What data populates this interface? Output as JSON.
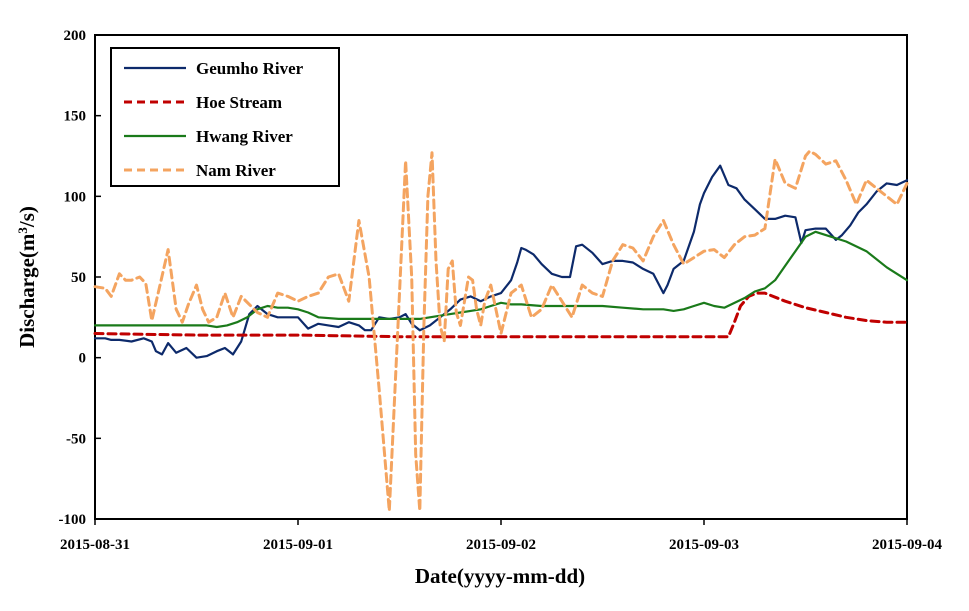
{
  "chart_data": {
    "type": "line",
    "title": "",
    "xlabel": "Date(yyyy-mm-dd)",
    "ylabel_parts": [
      "Discharge(m",
      "3",
      "/s)"
    ],
    "ylim": [
      -100,
      200
    ],
    "y_ticks": [
      -100,
      -50,
      0,
      50,
      100,
      150,
      200
    ],
    "xlim": [
      0,
      4
    ],
    "x_tick_labels": [
      "2015-08-31",
      "2015-09-01",
      "2015-09-02",
      "2015-09-03",
      "2015-09-04"
    ],
    "x_unit_note": "x values are days after 2015-08-31 00:00",
    "grid": false,
    "legend_position": "top-left",
    "series": [
      {
        "name": "Geumho River",
        "color": "#0d2a6b",
        "style": "solid",
        "x": [
          0,
          0.05,
          0.08,
          0.12,
          0.18,
          0.24,
          0.28,
          0.3,
          0.33,
          0.36,
          0.4,
          0.45,
          0.5,
          0.55,
          0.6,
          0.64,
          0.68,
          0.72,
          0.76,
          0.8,
          0.85,
          0.9,
          0.95,
          1.0,
          1.05,
          1.1,
          1.15,
          1.2,
          1.25,
          1.3,
          1.33,
          1.36,
          1.4,
          1.45,
          1.5,
          1.53,
          1.56,
          1.6,
          1.65,
          1.7,
          1.75,
          1.8,
          1.85,
          1.9,
          1.95,
          2.0,
          2.05,
          2.08,
          2.1,
          2.12,
          2.16,
          2.2,
          2.25,
          2.3,
          2.34,
          2.37,
          2.4,
          2.45,
          2.5,
          2.55,
          2.6,
          2.65,
          2.7,
          2.75,
          2.8,
          2.82,
          2.85,
          2.9,
          2.95,
          2.98,
          3.0,
          3.04,
          3.08,
          3.12,
          3.16,
          3.2,
          3.25,
          3.3,
          3.35,
          3.4,
          3.45,
          3.48,
          3.5,
          3.55,
          3.6,
          3.65,
          3.68,
          3.72,
          3.76,
          3.8,
          3.85,
          3.9,
          3.95,
          4.0
        ],
        "y": [
          12,
          12,
          11,
          11,
          10,
          12,
          10,
          4,
          2,
          9,
          3,
          6,
          0,
          1,
          4,
          6,
          2,
          10,
          27,
          32,
          27,
          25,
          25,
          25,
          18,
          21,
          20,
          19,
          22,
          20,
          17,
          17,
          25,
          24,
          25,
          27,
          21,
          17,
          20,
          25,
          30,
          36,
          38,
          35,
          38,
          40,
          48,
          59,
          68,
          67,
          64,
          58,
          52,
          50,
          50,
          69,
          70,
          65,
          58,
          60,
          60,
          59,
          55,
          52,
          40,
          45,
          55,
          60,
          78,
          95,
          102,
          112,
          119,
          107,
          105,
          98,
          92,
          86,
          86,
          88,
          87,
          71,
          79,
          80,
          80,
          73,
          76,
          82,
          90,
          95,
          103,
          108,
          107,
          110
        ]
      },
      {
        "name": "Hoe Stream",
        "color": "#c00000",
        "style": "dashed",
        "x": [
          0,
          0.5,
          1.0,
          1.5,
          2.0,
          2.5,
          3.0,
          3.08,
          3.12,
          3.15,
          3.18,
          3.22,
          3.26,
          3.3,
          3.4,
          3.5,
          3.6,
          3.7,
          3.8,
          3.9,
          4.0
        ],
        "y": [
          15,
          14,
          14,
          13,
          13,
          13,
          13,
          13,
          13,
          22,
          32,
          38,
          40,
          40,
          35,
          31,
          28,
          25,
          23,
          22,
          22
        ]
      },
      {
        "name": "Hwang River",
        "color": "#1a7a1a",
        "style": "solid",
        "x": [
          0,
          0.2,
          0.4,
          0.5,
          0.55,
          0.6,
          0.65,
          0.7,
          0.75,
          0.8,
          0.85,
          0.9,
          0.95,
          1.0,
          1.05,
          1.1,
          1.2,
          1.3,
          1.4,
          1.5,
          1.6,
          1.65,
          1.7,
          1.75,
          1.8,
          1.85,
          1.9,
          1.95,
          2.0,
          2.05,
          2.1,
          2.2,
          2.3,
          2.4,
          2.5,
          2.6,
          2.7,
          2.8,
          2.85,
          2.9,
          2.95,
          3.0,
          3.05,
          3.1,
          3.2,
          3.25,
          3.3,
          3.35,
          3.4,
          3.45,
          3.5,
          3.55,
          3.6,
          3.7,
          3.8,
          3.9,
          4.0
        ],
        "y": [
          20,
          20,
          20,
          20,
          20,
          19,
          20,
          22,
          25,
          30,
          32,
          31,
          31,
          30,
          28,
          25,
          24,
          24,
          24,
          24,
          24,
          25,
          26,
          27,
          28,
          29,
          30,
          32,
          34,
          33,
          33,
          32,
          32,
          32,
          32,
          31,
          30,
          30,
          29,
          30,
          32,
          34,
          32,
          31,
          37,
          41,
          43,
          48,
          57,
          66,
          75,
          78,
          76,
          72,
          66,
          56,
          48
        ]
      },
      {
        "name": "Nam River",
        "color": "#f4a460",
        "style": "dashed",
        "x": [
          0,
          0.05,
          0.08,
          0.12,
          0.15,
          0.18,
          0.22,
          0.25,
          0.28,
          0.32,
          0.36,
          0.4,
          0.43,
          0.46,
          0.5,
          0.53,
          0.56,
          0.6,
          0.64,
          0.68,
          0.72,
          0.76,
          0.8,
          0.85,
          0.9,
          0.95,
          1.0,
          1.05,
          1.1,
          1.15,
          1.2,
          1.25,
          1.3,
          1.35,
          1.4,
          1.45,
          1.5,
          1.53,
          1.56,
          1.58,
          1.6,
          1.62,
          1.64,
          1.66,
          1.68,
          1.7,
          1.72,
          1.74,
          1.76,
          1.78,
          1.8,
          1.82,
          1.84,
          1.86,
          1.88,
          1.9,
          1.92,
          1.95,
          2.0,
          2.05,
          2.1,
          2.15,
          2.2,
          2.25,
          2.3,
          2.35,
          2.4,
          2.45,
          2.5,
          2.55,
          2.6,
          2.65,
          2.7,
          2.75,
          2.8,
          2.85,
          2.9,
          2.95,
          3.0,
          3.05,
          3.1,
          3.15,
          3.2,
          3.25,
          3.3,
          3.35,
          3.4,
          3.45,
          3.5,
          3.52,
          3.55,
          3.6,
          3.65,
          3.7,
          3.75,
          3.8,
          3.85,
          3.9,
          3.95,
          4.0
        ],
        "y": [
          44,
          43,
          38,
          52,
          48,
          48,
          50,
          46,
          23,
          45,
          67,
          30,
          22,
          33,
          45,
          30,
          22,
          25,
          40,
          25,
          38,
          33,
          28,
          25,
          40,
          38,
          35,
          38,
          40,
          50,
          52,
          35,
          85,
          50,
          -20,
          -95,
          40,
          122,
          50,
          -60,
          -95,
          20,
          100,
          127,
          60,
          20,
          10,
          55,
          60,
          28,
          20,
          35,
          50,
          48,
          30,
          20,
          35,
          45,
          15,
          40,
          45,
          25,
          30,
          45,
          35,
          25,
          45,
          40,
          38,
          60,
          70,
          68,
          60,
          75,
          85,
          70,
          58,
          62,
          66,
          67,
          62,
          70,
          75,
          76,
          80,
          123,
          108,
          105,
          125,
          128,
          126,
          120,
          122,
          110,
          95,
          110,
          105,
          100,
          95,
          108
        ]
      }
    ]
  }
}
